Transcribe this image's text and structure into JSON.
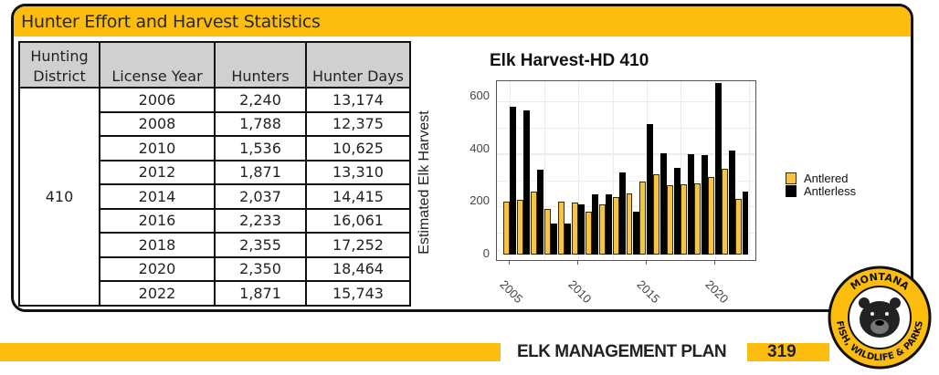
{
  "section": {
    "title": "Hunter Effort and Harvest Statistics"
  },
  "table": {
    "headers": [
      "Hunting District",
      "License Year",
      "Hunters",
      "Hunter Days"
    ],
    "district": "410",
    "rows": [
      {
        "year": "2006",
        "hunters": "2,240",
        "days": "13,174"
      },
      {
        "year": "2008",
        "hunters": "1,788",
        "days": "12,375"
      },
      {
        "year": "2010",
        "hunters": "1,536",
        "days": "10,625"
      },
      {
        "year": "2012",
        "hunters": "1,871",
        "days": "13,310"
      },
      {
        "year": "2014",
        "hunters": "2,037",
        "days": "14,415"
      },
      {
        "year": "2016",
        "hunters": "2,233",
        "days": "16,061"
      },
      {
        "year": "2018",
        "hunters": "2,355",
        "days": "17,252"
      },
      {
        "year": "2020",
        "hunters": "2,350",
        "days": "18,464"
      },
      {
        "year": "2022",
        "hunters": "1,871",
        "days": "15,743"
      }
    ]
  },
  "chart_data": {
    "type": "bar",
    "title": "Elk Harvest-HD 410",
    "xlabel": "",
    "ylabel": "Estimated Elk Harvest",
    "ylim": [
      0,
      680
    ],
    "yticks": [
      0,
      200,
      400,
      600
    ],
    "xticks": [
      "2005",
      "2010",
      "2015",
      "2020"
    ],
    "grid": true,
    "legend_position": "right",
    "categories": [
      "2005",
      "2006",
      "2007",
      "2008",
      "2009",
      "2010",
      "2011",
      "2012",
      "2013",
      "2014",
      "2015",
      "2016",
      "2017",
      "2018",
      "2019",
      "2020",
      "2021",
      "2022"
    ],
    "series": [
      {
        "name": "Antlered",
        "color": "#f6c342",
        "values": [
          200,
          207,
          241,
          172,
          200,
          198,
          162,
          190,
          217,
          232,
          279,
          307,
          264,
          268,
          272,
          296,
          326,
          213
        ]
      },
      {
        "name": "Antlerless",
        "color": "#000000",
        "values": [
          562,
          548,
          323,
          117,
          117,
          190,
          229,
          229,
          311,
          162,
          495,
          386,
          331,
          382,
          377,
          654,
          397,
          240
        ]
      }
    ]
  },
  "footer": {
    "title": "ELK MANAGEMENT PLAN",
    "page": "319"
  },
  "logo": {
    "top_text": "MONTANA",
    "bottom_text": "FISH, WILDLIFE & PARKS",
    "icon": "bear-icon"
  },
  "colors": {
    "accent": "#fcbd0f",
    "antlered": "#f6c342",
    "antlerless": "#000000"
  }
}
